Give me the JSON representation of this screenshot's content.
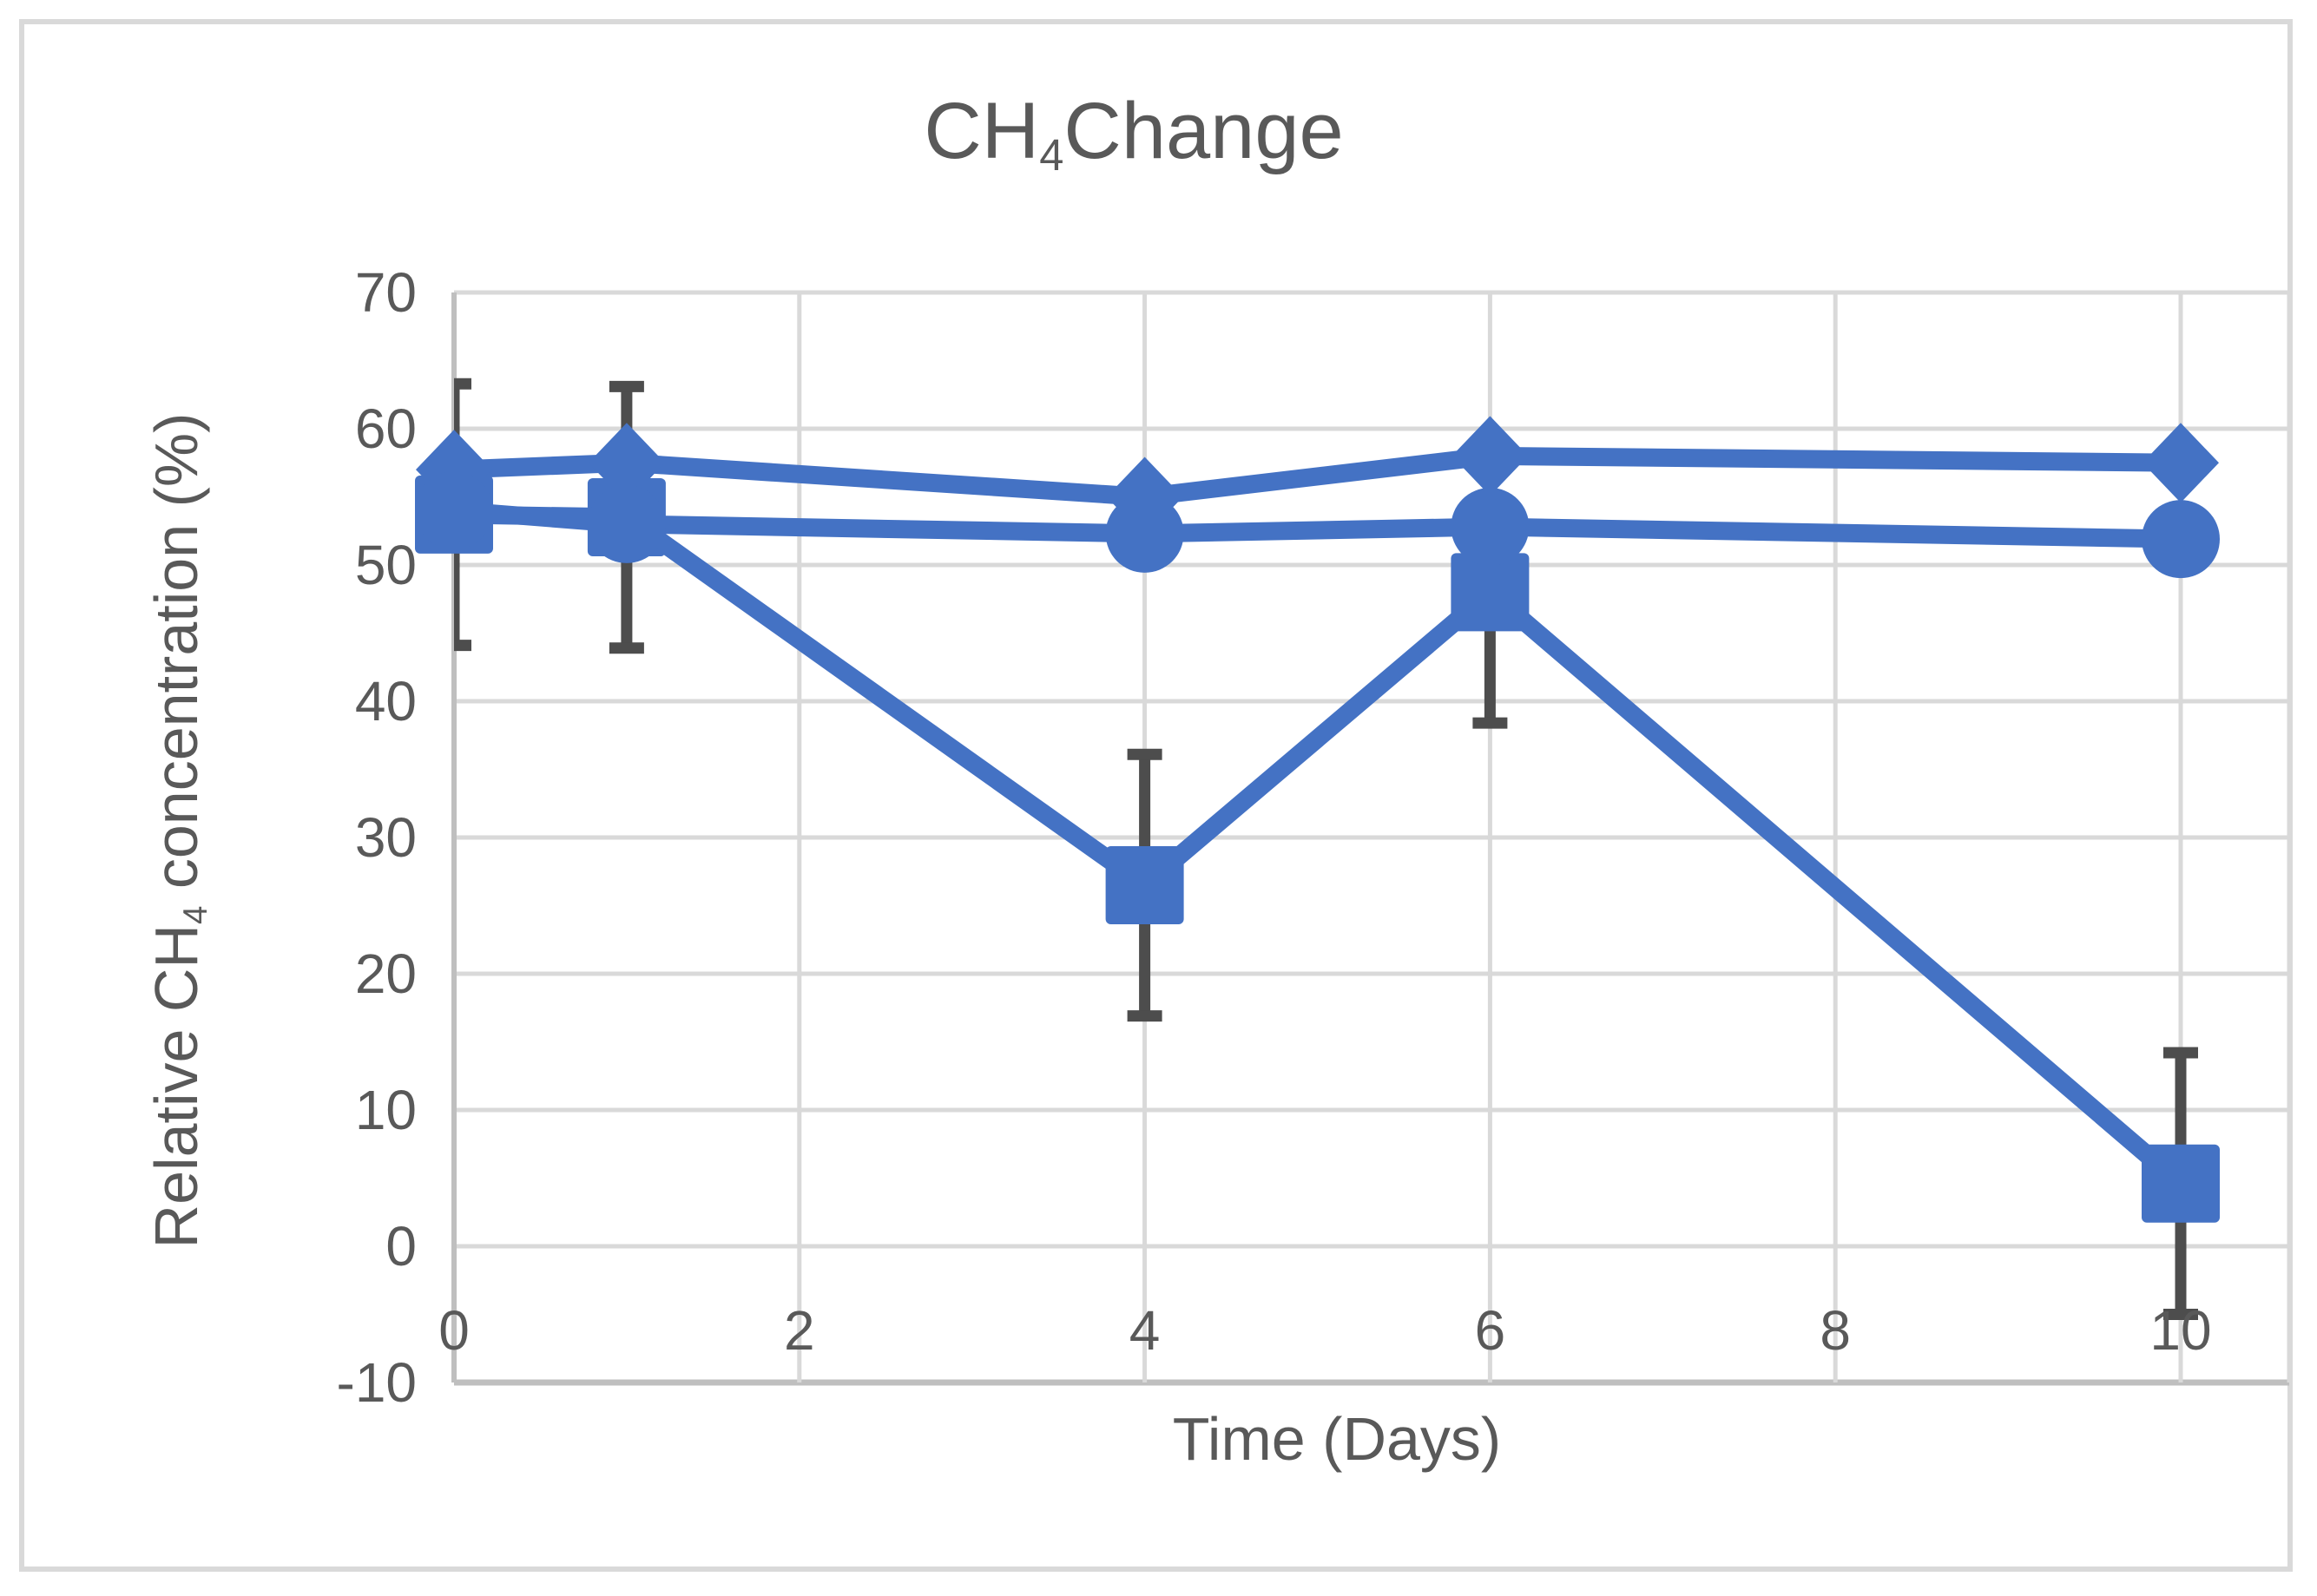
{
  "chart": {
    "title": {
      "prefix": "CH",
      "sub": "4",
      "suffix": "Change"
    },
    "y_axis_title": {
      "prefix": "Relative CH",
      "sub": "4",
      "suffix": " concentration (%)"
    },
    "x_axis_title": "Time (Days)"
  },
  "chart_data": {
    "type": "line",
    "title": "CH4Change",
    "xlabel": "Time (Days)",
    "ylabel": "Relative CH4 concentration (%)",
    "x_ticks": [
      0,
      2,
      4,
      6,
      8,
      10
    ],
    "y_ticks": [
      70,
      60,
      50,
      40,
      30,
      20,
      10,
      0,
      -10
    ],
    "xlim": [
      0,
      10.63
    ],
    "ylim": [
      -10,
      70
    ],
    "grid": true,
    "legend_position": "none",
    "x_shared": [
      0,
      1,
      4,
      6,
      10
    ],
    "series": [
      {
        "name": "diamond-series",
        "marker": "diamond",
        "values": [
          57,
          57.5,
          55,
          58,
          57.5
        ]
      },
      {
        "name": "square-series",
        "marker": "square",
        "values": [
          53.7,
          53.5,
          26.5,
          48,
          4.6
        ],
        "error_y": 9.6
      },
      {
        "name": "circle-series",
        "marker": "circle",
        "values": [
          54,
          53,
          52.3,
          52.8,
          51.9
        ]
      }
    ],
    "colors": {
      "series_blue": "#4472c4",
      "error_bar": "#4d4d4d",
      "gridline": "#d9d9d9",
      "axis_line": "#bfbfbf",
      "text": "#595959",
      "frame_border": "#d9d9d9",
      "background": "#ffffff"
    }
  }
}
